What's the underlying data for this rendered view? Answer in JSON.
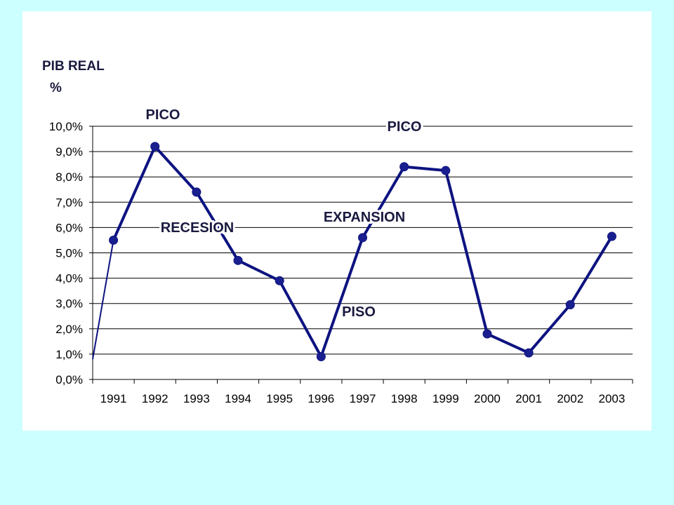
{
  "chart_data": {
    "type": "line",
    "ylabel": "PIB REAL",
    "ylabel_unit": "%",
    "categories": [
      "1991",
      "1992",
      "1993",
      "1994",
      "1995",
      "1996",
      "1997",
      "1998",
      "1999",
      "2000",
      "2001",
      "2002",
      "2003"
    ],
    "yticks": [
      "0,0%",
      "1,0%",
      "2,0%",
      "3,0%",
      "4,0%",
      "5,0%",
      "6,0%",
      "7,0%",
      "8,0%",
      "9,0%",
      "10,0%"
    ],
    "ylim": [
      0,
      10
    ],
    "grid": true,
    "start_value": 0.8,
    "series": [
      {
        "values": [
          5.5,
          9.2,
          7.4,
          4.7,
          3.9,
          0.9,
          5.6,
          8.4,
          8.25,
          1.8,
          1.05,
          2.95,
          5.65
        ]
      }
    ],
    "annotations": [
      {
        "id": "pico-1",
        "text": "PICO"
      },
      {
        "id": "pico-2",
        "text": "PICO"
      },
      {
        "id": "recesion",
        "text": "RECESION"
      },
      {
        "id": "expansion",
        "text": "EXPANSION"
      },
      {
        "id": "piso",
        "text": "PISO"
      }
    ]
  },
  "colors": {
    "line": "#0d1380",
    "marker": "#1a1f8f",
    "annotation": "#1a1a40",
    "grid": "#000000",
    "background": "#ccffff",
    "plot_bg": "#ffffff"
  }
}
